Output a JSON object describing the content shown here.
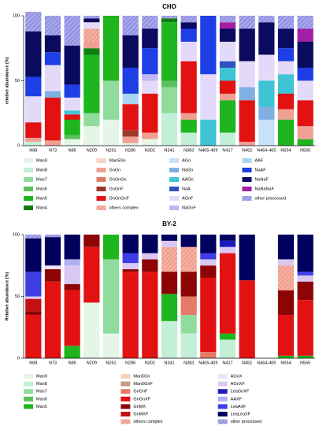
{
  "chart_data": [
    {
      "type": "stacked_bar",
      "title": "CHO",
      "y_label": "relative abundance (%)",
      "categories": [
        "N68",
        "N73",
        "N85",
        "N209",
        "N261",
        "N286",
        "N302",
        "N341",
        "N383",
        "N405-409",
        "N417",
        "N452",
        "N464-465",
        "N554",
        "N565"
      ],
      "ylim": [
        0,
        100
      ],
      "yticks": [
        0,
        50,
        100
      ],
      "series": [
        {
          "name": "Man9",
          "color": "#e4f6e6",
          "values": [
            0,
            0,
            5,
            15,
            20,
            2,
            5,
            0,
            0,
            0,
            0,
            0,
            0,
            0,
            0
          ]
        },
        {
          "name": "Man8",
          "color": "#c2efd6",
          "values": [
            3,
            0,
            0,
            0,
            0,
            0,
            0,
            25,
            10,
            0,
            10,
            0,
            0,
            0,
            0
          ]
        },
        {
          "name": "Man7",
          "color": "#8fdc9c",
          "values": [
            0,
            0,
            0,
            10,
            30,
            0,
            0,
            20,
            0,
            0,
            0,
            0,
            0,
            0,
            0
          ]
        },
        {
          "name": "Man6",
          "color": "#5cbf5c",
          "values": [
            0,
            0,
            3,
            0,
            0,
            0,
            0,
            5,
            0,
            0,
            0,
            0,
            0,
            0,
            0
          ]
        },
        {
          "name": "Man5",
          "color": "#1fb51f",
          "values": [
            0,
            0,
            12,
            45,
            50,
            0,
            0,
            45,
            10,
            0,
            25,
            0,
            0,
            20,
            5
          ]
        },
        {
          "name": "Man4",
          "color": "#0f7d0f",
          "values": [
            0,
            0,
            0,
            5,
            0,
            0,
            0,
            3,
            0,
            0,
            0,
            0,
            0,
            0,
            0
          ]
        },
        {
          "name": "Man5Gn",
          "color": "#f6d3c4",
          "values": [
            0,
            0,
            0,
            0,
            0,
            0,
            0,
            0,
            0,
            0,
            0,
            0,
            0,
            0,
            0
          ]
        },
        {
          "name": "GnGn",
          "color": "#f0a092",
          "values": [
            3,
            4,
            0,
            5,
            0,
            5,
            5,
            0,
            5,
            0,
            5,
            3,
            0,
            8,
            10
          ]
        },
        {
          "name": "GnGnGn",
          "color": "#e07a6a",
          "values": [
            0,
            0,
            0,
            0,
            0,
            0,
            0,
            0,
            0,
            0,
            0,
            0,
            0,
            0,
            0
          ]
        },
        {
          "name": "GnGnF",
          "color": "#9c3a2a",
          "values": [
            0,
            0,
            0,
            0,
            0,
            5,
            0,
            0,
            0,
            0,
            0,
            0,
            0,
            0,
            0
          ]
        },
        {
          "name": "GnGnGnF",
          "color": "#e31212",
          "values": [
            12,
            33,
            4,
            0,
            0,
            20,
            30,
            0,
            40,
            0,
            10,
            32,
            0,
            12,
            20
          ]
        },
        {
          "name": "others complex",
          "color": "#f2a08e",
          "hatch": true,
          "values": [
            0,
            0,
            0,
            10,
            0,
            0,
            0,
            0,
            0,
            0,
            0,
            0,
            0,
            0,
            0
          ]
        },
        {
          "name": "AGn",
          "color": "#c8e0f8",
          "values": [
            0,
            0,
            0,
            0,
            0,
            0,
            0,
            0,
            0,
            0,
            0,
            0,
            20,
            0,
            0
          ]
        },
        {
          "name": "NaGn",
          "color": "#80b0e2",
          "values": [
            0,
            5,
            0,
            0,
            0,
            0,
            0,
            0,
            0,
            0,
            0,
            10,
            10,
            0,
            0
          ]
        },
        {
          "name": "AAGn",
          "color": "#3ec4d4",
          "values": [
            0,
            0,
            3,
            0,
            0,
            0,
            0,
            0,
            0,
            20,
            10,
            0,
            20,
            15,
            0
          ]
        },
        {
          "name": "NaA",
          "color": "#2f52c2",
          "values": [
            0,
            0,
            0,
            0,
            0,
            0,
            0,
            0,
            0,
            0,
            5,
            0,
            0,
            0,
            0
          ]
        },
        {
          "name": "AGnF",
          "color": "#e2daf8",
          "values": [
            20,
            20,
            10,
            5,
            0,
            0,
            10,
            0,
            15,
            35,
            15,
            20,
            20,
            10,
            15
          ]
        },
        {
          "name": "NaGnF",
          "color": "#c0b6f0",
          "values": [
            0,
            0,
            0,
            0,
            0,
            0,
            5,
            0,
            0,
            0,
            0,
            0,
            0,
            0,
            0
          ]
        },
        {
          "name": "AAF",
          "color": "#a8d6f0",
          "values": [
            0,
            0,
            0,
            0,
            0,
            8,
            0,
            0,
            0,
            0,
            0,
            0,
            0,
            0,
            0
          ]
        },
        {
          "name": "NaAF",
          "color": "#1e3ee6",
          "values": [
            15,
            10,
            10,
            0,
            0,
            20,
            20,
            0,
            10,
            45,
            0,
            0,
            0,
            10,
            10
          ]
        },
        {
          "name": "NaNaF",
          "color": "#0a0a5e",
          "values": [
            35,
            13,
            30,
            3,
            0,
            25,
            15,
            0,
            5,
            0,
            10,
            25,
            25,
            15,
            20
          ]
        },
        {
          "name": "NaNaNaF",
          "color": "#a31fa3",
          "values": [
            0,
            0,
            0,
            0,
            0,
            0,
            0,
            0,
            0,
            0,
            5,
            0,
            0,
            0,
            10
          ]
        },
        {
          "name": "other processed",
          "color": "#9494e4",
          "hatch": true,
          "values": [
            15,
            15,
            23,
            2,
            0,
            15,
            10,
            2,
            5,
            0,
            5,
            10,
            5,
            10,
            10
          ]
        }
      ]
    },
    {
      "type": "stacked_bar",
      "title": "BY-2",
      "y_label": "Relative abundance (%)",
      "categories": [
        "N68",
        "N73",
        "N85",
        "N209",
        "N261",
        "N286",
        "N302",
        "N341",
        "N383",
        "N405-409",
        "N417",
        "N452",
        "N464-465",
        "N554",
        "N565"
      ],
      "ylim": [
        0,
        100
      ],
      "yticks": [
        0,
        50,
        100
      ],
      "series": [
        {
          "name": "Man9",
          "color": "#e4f6e6",
          "values": [
            0,
            0,
            0,
            45,
            20,
            0,
            0,
            0,
            0,
            0,
            0,
            0,
            0,
            0,
            0
          ]
        },
        {
          "name": "Man8",
          "color": "#c2efd6",
          "values": [
            0,
            0,
            0,
            0,
            0,
            0,
            0,
            30,
            20,
            0,
            15,
            0,
            0,
            0,
            0
          ]
        },
        {
          "name": "Man7",
          "color": "#8fdc9c",
          "values": [
            0,
            0,
            0,
            0,
            60,
            0,
            0,
            0,
            15,
            0,
            0,
            0,
            0,
            0,
            0
          ]
        },
        {
          "name": "Man6",
          "color": "#5cbf5c",
          "values": [
            0,
            0,
            0,
            0,
            0,
            0,
            0,
            0,
            0,
            0,
            0,
            0,
            0,
            0,
            0
          ]
        },
        {
          "name": "Man5",
          "color": "#1fb51f",
          "values": [
            0,
            0,
            10,
            0,
            20,
            0,
            0,
            22,
            0,
            0,
            5,
            0,
            0,
            2,
            2
          ]
        },
        {
          "name": "Man5Gn",
          "color": "#f6d3c4",
          "values": [
            0,
            0,
            0,
            0,
            0,
            0,
            0,
            0,
            0,
            0,
            0,
            0,
            0,
            0,
            0
          ]
        },
        {
          "name": "Man5GnF",
          "color": "#c89a86",
          "values": [
            0,
            0,
            0,
            0,
            0,
            0,
            0,
            0,
            0,
            0,
            0,
            0,
            0,
            0,
            0
          ]
        },
        {
          "name": "GnGnF",
          "color": "#e67a68",
          "values": [
            0,
            0,
            0,
            0,
            0,
            0,
            0,
            0,
            15,
            5,
            0,
            0,
            0,
            0,
            0
          ]
        },
        {
          "name": "GnGnXF",
          "color": "#e31212",
          "values": [
            35,
            62,
            45,
            45,
            0,
            70,
            70,
            0,
            0,
            60,
            65,
            63,
            0,
            33,
            45
          ]
        },
        {
          "name": "GnMX",
          "color": "#8e0404",
          "values": [
            3,
            10,
            5,
            10,
            0,
            2,
            10,
            18,
            20,
            10,
            0,
            0,
            0,
            20,
            15
          ]
        },
        {
          "name": "GnMXF",
          "color": "#c41010",
          "values": [
            10,
            0,
            0,
            0,
            0,
            0,
            0,
            0,
            0,
            0,
            0,
            0,
            0,
            0,
            0
          ]
        },
        {
          "name": "others complex",
          "color": "#f2a08e",
          "hatch": true,
          "values": [
            0,
            0,
            0,
            0,
            0,
            0,
            0,
            20,
            20,
            0,
            0,
            0,
            0,
            20,
            0
          ]
        },
        {
          "name": "AGnX",
          "color": "#f0e2f8",
          "values": [
            0,
            3,
            0,
            0,
            0,
            0,
            0,
            0,
            0,
            0,
            0,
            0,
            0,
            0,
            0
          ]
        },
        {
          "name": "AGnXF",
          "color": "#d8c8f2",
          "values": [
            2,
            0,
            15,
            0,
            0,
            5,
            5,
            5,
            0,
            5,
            5,
            0,
            0,
            5,
            5
          ]
        },
        {
          "name": "LeaGnXF",
          "color": "#1c1cbe",
          "values": [
            0,
            0,
            0,
            0,
            0,
            0,
            0,
            0,
            0,
            0,
            5,
            0,
            0,
            0,
            0
          ]
        },
        {
          "name": "AAXF",
          "color": "#b0b0f2",
          "values": [
            0,
            0,
            5,
            0,
            0,
            0,
            0,
            0,
            0,
            0,
            0,
            0,
            0,
            0,
            0
          ]
        },
        {
          "name": "LeaAXF",
          "color": "#3e3ee4",
          "values": [
            20,
            0,
            0,
            0,
            0,
            8,
            0,
            0,
            0,
            5,
            0,
            0,
            0,
            0,
            3
          ]
        },
        {
          "name": "LeaLeaXF",
          "color": "#00005e",
          "values": [
            27,
            23,
            20,
            0,
            0,
            15,
            15,
            5,
            10,
            15,
            5,
            37,
            0,
            20,
            30
          ]
        },
        {
          "name": "other processed",
          "color": "#9494e4",
          "hatch": true,
          "values": [
            3,
            2,
            0,
            0,
            0,
            0,
            0,
            0,
            0,
            0,
            0,
            0,
            0,
            0,
            0
          ]
        }
      ]
    }
  ]
}
